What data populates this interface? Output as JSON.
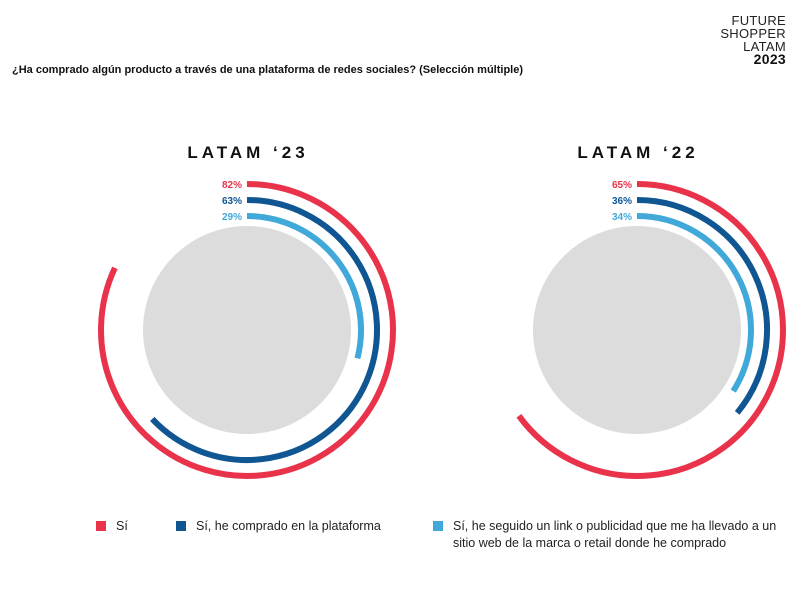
{
  "brand": {
    "line1": "FUTURE",
    "line2": "SHOPPER",
    "line3": "LATAM",
    "year": "2023"
  },
  "question": "¿Ha comprado algún producto a través de una plataforma de redes sociales? (Selección múltiple)",
  "colors": {
    "red": "#e8334b",
    "dark_blue": "#0f5693",
    "light_blue": "#41a9da",
    "center_fill": "#dcdcdc"
  },
  "chart_data": [
    {
      "type": "radial-bar",
      "title": "LATAM ‘23",
      "series": [
        {
          "name": "Sí",
          "value": 82,
          "label": "82%",
          "color": "#e8334b"
        },
        {
          "name": "Sí, he comprado en la plataforma",
          "value": 63,
          "label": "63%",
          "color": "#0f5693"
        },
        {
          "name": "Sí, he seguido un link o publicidad que me ha llevado a un sitio web de la marca o retail donde he comprado",
          "value": 29,
          "label": "29%",
          "color": "#41a9da"
        }
      ]
    },
    {
      "type": "radial-bar",
      "title": "LATAM ‘22",
      "series": [
        {
          "name": "Sí",
          "value": 65,
          "label": "65%",
          "color": "#e8334b"
        },
        {
          "name": "Sí, he comprado en la plataforma",
          "value": 36,
          "label": "36%",
          "color": "#0f5693"
        },
        {
          "name": "Sí, he seguido un link o publicidad que me ha llevado a un sitio web de la marca o retail donde he comprado",
          "value": 34,
          "label": "34%",
          "color": "#41a9da"
        }
      ]
    }
  ],
  "legend": [
    {
      "label": "Sí",
      "color": "#e8334b"
    },
    {
      "label": "Sí, he comprado en la plataforma",
      "color": "#0f5693"
    },
    {
      "label": "Sí, he seguido un link o publicidad que me ha llevado a un sitio web de la marca o retail donde he comprado",
      "color": "#41a9da"
    }
  ]
}
